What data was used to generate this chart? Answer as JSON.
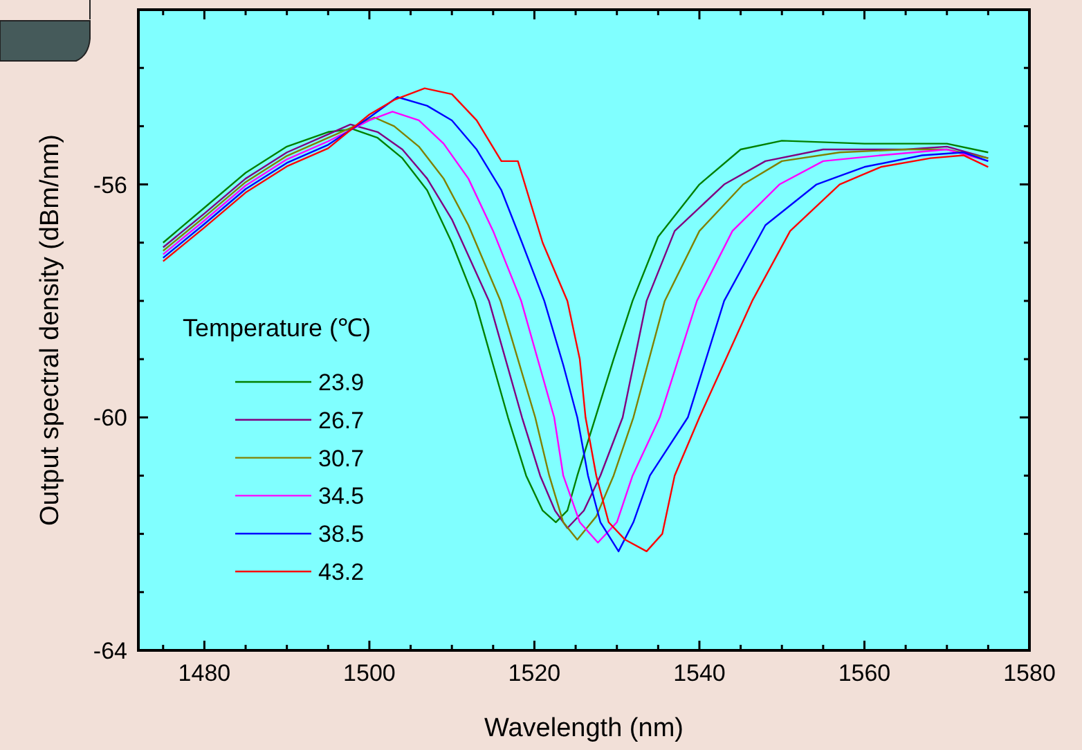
{
  "chart_data": {
    "type": "line",
    "xlabel": "Wavelength (nm)",
    "ylabel": "Output spectral density (dBm/nm)",
    "legend_title": "Temperature (℃)",
    "legend": "left",
    "grid": false,
    "line_style": "solid",
    "xlim": [
      1472,
      1580
    ],
    "ylim": [
      -64,
      -53
    ],
    "xticks": [
      {
        "value": 1475,
        "label": null
      },
      1480,
      {
        "value": 1485,
        "label": null
      },
      {
        "value": 1490,
        "label": null
      },
      {
        "value": 1495,
        "label": null
      },
      1500,
      {
        "value": 1505,
        "label": null
      },
      {
        "value": 1510,
        "label": null
      },
      {
        "value": 1515,
        "label": null
      },
      1520,
      {
        "value": 1525,
        "label": null
      },
      {
        "value": 1530,
        "label": null
      },
      {
        "value": 1535,
        "label": null
      },
      1540,
      {
        "value": 1545,
        "label": null
      },
      {
        "value": 1550,
        "label": null
      },
      {
        "value": 1555,
        "label": null
      },
      1560,
      {
        "value": 1565,
        "label": null
      },
      {
        "value": 1570,
        "label": null
      },
      {
        "value": 1575,
        "label": null
      },
      1580
    ],
    "yticks": [
      -64,
      {
        "value": -63,
        "label": null
      },
      {
        "value": -62,
        "label": null
      },
      {
        "value": -61,
        "label": null
      },
      -60,
      {
        "value": -59,
        "label": null
      },
      {
        "value": -58,
        "label": null
      },
      {
        "value": -57,
        "label": null
      },
      -56,
      {
        "value": -55,
        "label": null
      },
      {
        "value": -54,
        "label": null
      }
    ],
    "series": [
      {
        "name": "23.9",
        "color": "#008000",
        "x": [
          1475,
          1480,
          1485,
          1490,
          1495,
          1498,
          1501,
          1504,
          1507,
          1510,
          1512.8,
          1515,
          1516.8,
          1519,
          1521,
          1522.6,
          1524,
          1525.2,
          1527.4,
          1529.6,
          1531.9,
          1535,
          1540,
          1545,
          1550,
          1560,
          1570,
          1575
        ],
        "values": [
          -57.0,
          -56.4,
          -55.8,
          -55.35,
          -55.1,
          -55.05,
          -55.2,
          -55.55,
          -56.1,
          -57,
          -58,
          -59.1,
          -60,
          -61,
          -61.6,
          -61.8,
          -61.6,
          -61,
          -60,
          -59,
          -58,
          -56.9,
          -56,
          -55.4,
          -55.25,
          -55.3,
          -55.3,
          -55.45
        ]
      },
      {
        "name": "26.7",
        "color": "#800080",
        "x": [
          1475,
          1480,
          1485,
          1490,
          1495,
          1497.7,
          1501,
          1504,
          1507,
          1510,
          1514.5,
          1518.5,
          1520.7,
          1522.5,
          1524,
          1526,
          1528,
          1530.7,
          1533.6,
          1537,
          1543,
          1548,
          1555,
          1565,
          1570,
          1575
        ],
        "values": [
          -57.08,
          -56.5,
          -55.9,
          -55.45,
          -55.14,
          -54.97,
          -55.1,
          -55.4,
          -55.9,
          -56.6,
          -58,
          -60,
          -61,
          -61.6,
          -61.9,
          -61.6,
          -61,
          -60,
          -58,
          -56.8,
          -56,
          -55.6,
          -55.4,
          -55.4,
          -55.35,
          -55.55
        ]
      },
      {
        "name": "30.7",
        "color": "#808000",
        "x": [
          1475,
          1480,
          1485,
          1490,
          1495,
          1500.6,
          1503,
          1506,
          1509,
          1512,
          1515.9,
          1520.1,
          1521.8,
          1523.5,
          1525.2,
          1527.5,
          1529.6,
          1532,
          1535.8,
          1540,
          1545.3,
          1550,
          1557,
          1565,
          1570,
          1575
        ],
        "values": [
          -57.14,
          -56.56,
          -55.96,
          -55.51,
          -55.2,
          -54.85,
          -55,
          -55.35,
          -55.9,
          -56.7,
          -58,
          -60,
          -61,
          -61.8,
          -62.1,
          -61.7,
          -61,
          -60,
          -58,
          -56.8,
          -56,
          -55.6,
          -55.45,
          -55.4,
          -55.4,
          -55.55
        ]
      },
      {
        "name": "34.5",
        "color": "#ff00ff",
        "x": [
          1475,
          1480,
          1485,
          1490,
          1495,
          1500,
          1502.8,
          1506,
          1509,
          1512,
          1515,
          1518.4,
          1522.4,
          1523.5,
          1525.5,
          1527.7,
          1530,
          1531.9,
          1535.2,
          1539.7,
          1544,
          1549.7,
          1555,
          1562,
          1570,
          1575
        ],
        "values": [
          -57.2,
          -56.62,
          -56.02,
          -55.57,
          -55.26,
          -54.9,
          -54.75,
          -54.9,
          -55.3,
          -55.9,
          -56.8,
          -58,
          -60,
          -61,
          -61.8,
          -62.15,
          -61.8,
          -61,
          -60,
          -58,
          -56.8,
          -56,
          -55.6,
          -55.5,
          -55.4,
          -55.6
        ]
      },
      {
        "name": "38.5",
        "color": "#0000ff",
        "x": [
          1475,
          1480,
          1485,
          1490,
          1495,
          1500,
          1503.4,
          1507,
          1510,
          1513,
          1516,
          1518.5,
          1521.2,
          1523.5,
          1525.2,
          1526.5,
          1528,
          1530.2,
          1532,
          1534,
          1538.6,
          1543,
          1548,
          1554.2,
          1560,
          1567,
          1572,
          1575
        ],
        "values": [
          -57.26,
          -56.68,
          -56.08,
          -55.63,
          -55.32,
          -54.85,
          -54.5,
          -54.65,
          -54.9,
          -55.4,
          -56.1,
          -57,
          -58,
          -59.1,
          -60,
          -61,
          -61.8,
          -62.3,
          -61.8,
          -61,
          -60,
          -58,
          -56.7,
          -56,
          -55.7,
          -55.5,
          -55.45,
          -55.6
        ]
      },
      {
        "name": "43.2",
        "color": "#ff0000",
        "x": [
          1475,
          1480,
          1485,
          1490,
          1495,
          1500,
          1503,
          1506.7,
          1510,
          1513,
          1516,
          1518,
          1521,
          1524,
          1525.5,
          1526.2,
          1527.5,
          1529,
          1531,
          1533.6,
          1535.5,
          1537,
          1540,
          1546.4,
          1551,
          1557,
          1562,
          1568,
          1572,
          1575
        ],
        "values": [
          -57.32,
          -56.74,
          -56.14,
          -55.69,
          -55.38,
          -54.8,
          -54.55,
          -54.35,
          -54.45,
          -54.9,
          -55.6,
          -55.6,
          -57,
          -58,
          -59,
          -60,
          -61,
          -61.8,
          -62.1,
          -62.3,
          -62,
          -61,
          -60,
          -58,
          -56.8,
          -56,
          -55.7,
          -55.55,
          -55.5,
          -55.7
        ]
      }
    ]
  }
}
